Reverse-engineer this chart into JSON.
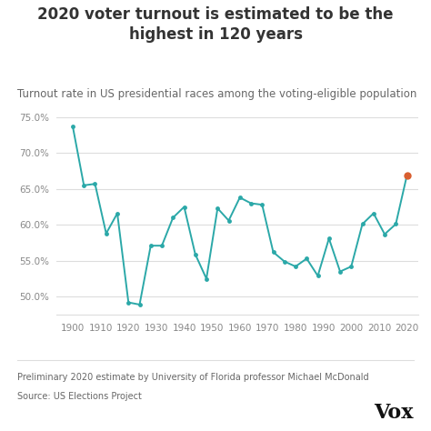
{
  "title": "2020 voter turnout is estimated to be the\nhighest in 120 years",
  "subtitle": "Turnout rate in US presidential races among the voting-eligible population",
  "footnote1": "Preliminary 2020 estimate by University of Florida professor Michael McDonald",
  "footnote2": "Source: US Elections Project",
  "years": [
    1900,
    1904,
    1908,
    1912,
    1916,
    1920,
    1924,
    1928,
    1932,
    1936,
    1940,
    1944,
    1948,
    1952,
    1956,
    1960,
    1964,
    1968,
    1972,
    1976,
    1980,
    1984,
    1988,
    1992,
    1996,
    2000,
    2004,
    2008,
    2012,
    2016,
    2020
  ],
  "turnout": [
    73.7,
    65.5,
    65.7,
    58.8,
    61.6,
    49.2,
    48.9,
    57.1,
    57.1,
    61.0,
    62.5,
    55.9,
    52.5,
    62.3,
    60.6,
    63.8,
    63.0,
    62.8,
    56.2,
    54.9,
    54.2,
    55.3,
    52.9,
    58.1,
    53.5,
    54.2,
    60.1,
    61.6,
    58.7,
    60.1,
    66.9
  ],
  "line_color": "#2ba8a8",
  "highlight_color": "#d95f30",
  "highlight_year": 2020,
  "ylim": [
    47.5,
    77.5
  ],
  "yticks": [
    50.0,
    55.0,
    60.0,
    65.0,
    70.0,
    75.0
  ],
  "xtick_start": 1900,
  "xtick_end": 2020,
  "xtick_step": 10,
  "bg_color": "#ffffff",
  "chart_bg": "#f7f7f7",
  "title_fontsize": 12,
  "subtitle_fontsize": 8.5,
  "footnote_fontsize": 7,
  "vox_fontsize": 16,
  "axis_label_color": "#888888",
  "grid_color": "#dddddd",
  "text_color": "#333333",
  "subtitle_color": "#666666"
}
